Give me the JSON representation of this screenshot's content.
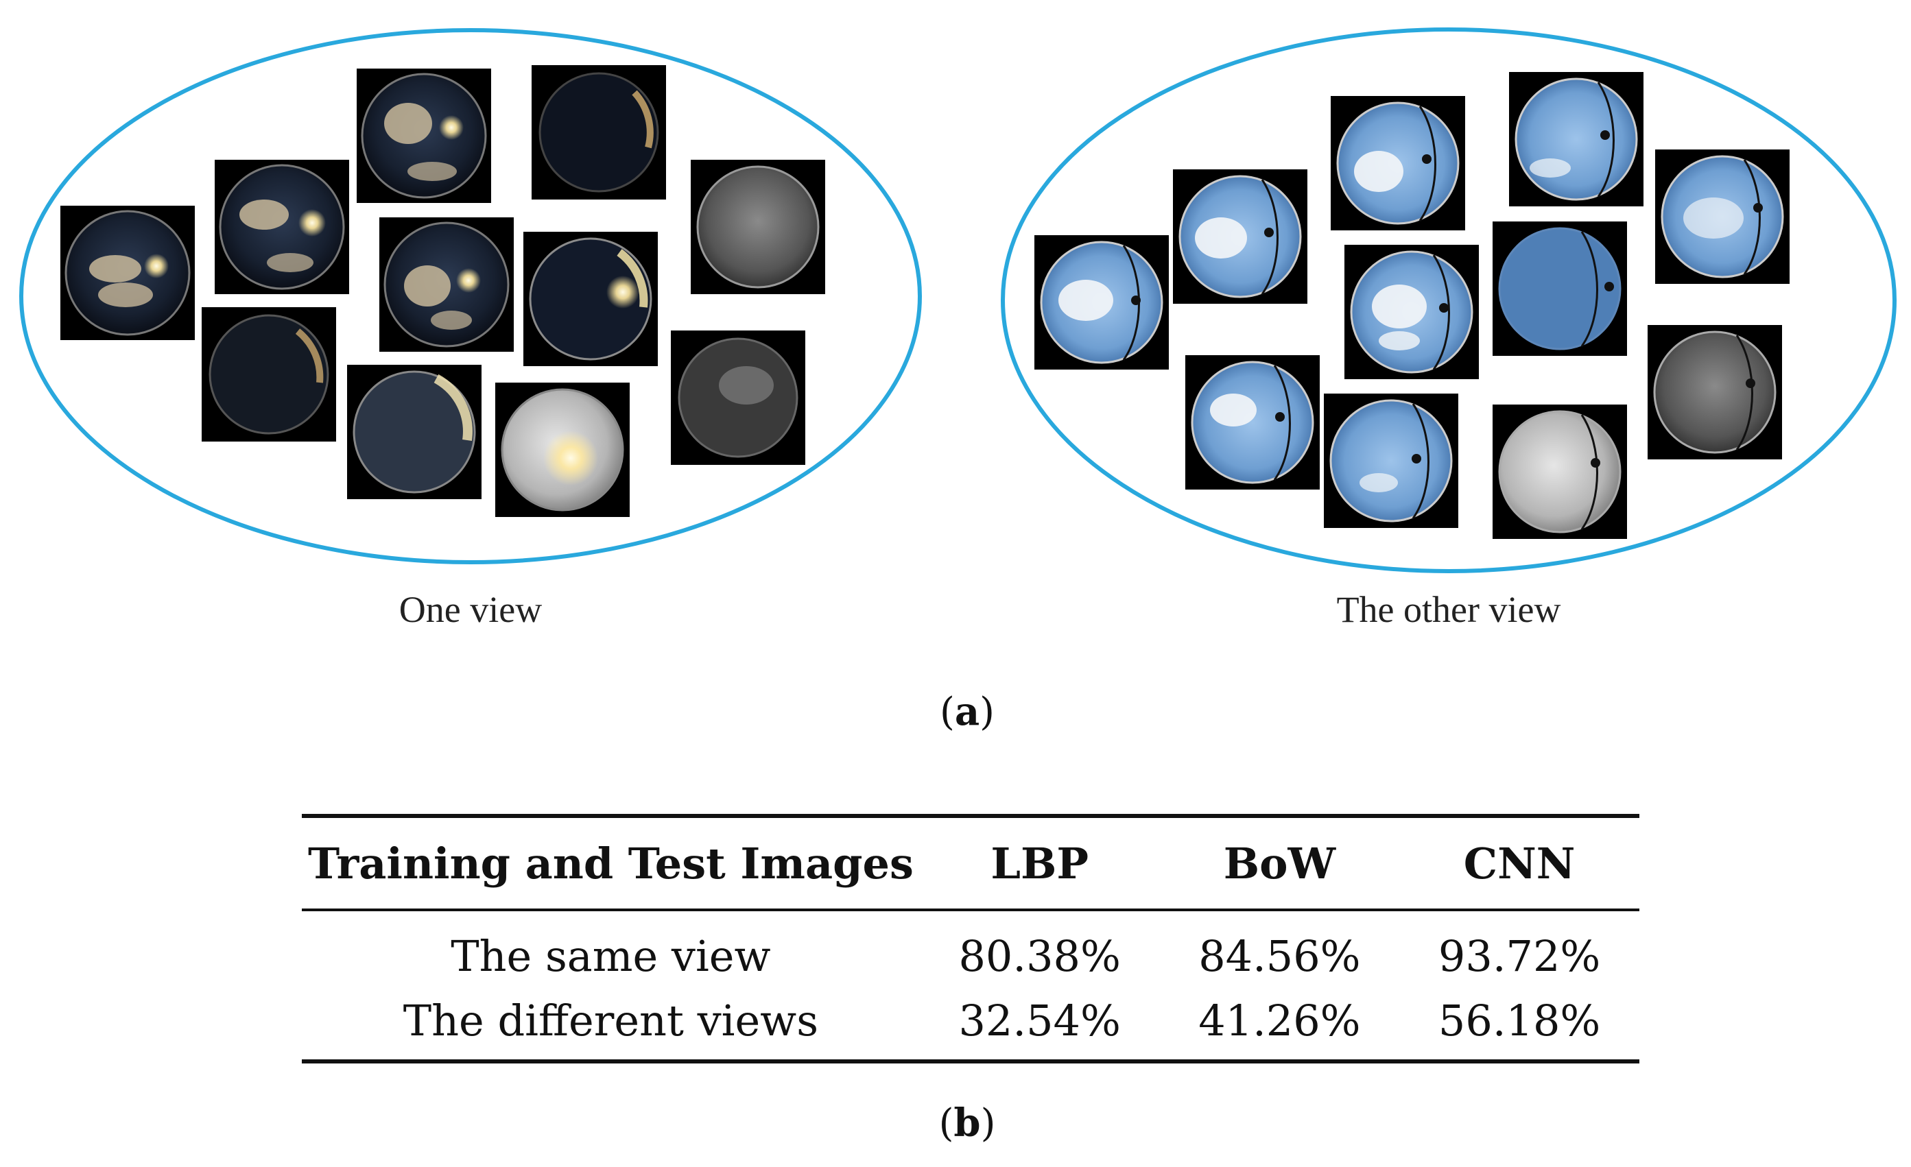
{
  "figure_a": {
    "view_one_label": "One view",
    "view_other_label": "The other view",
    "caption": "a",
    "colors": {
      "ellipse_stroke": "#29a8dd",
      "tile_background": "#000000",
      "night_sky": "#1b2333",
      "day_sky": "#6e9fd3"
    }
  },
  "table": {
    "headers": [
      "Training and Test Images",
      "LBP",
      "BoW",
      "CNN"
    ],
    "rows": [
      [
        "The same view",
        "80.38%",
        "84.56%",
        "93.72%"
      ],
      [
        "The different views",
        "32.54%",
        "41.26%",
        "56.18%"
      ]
    ],
    "caption": "b"
  }
}
